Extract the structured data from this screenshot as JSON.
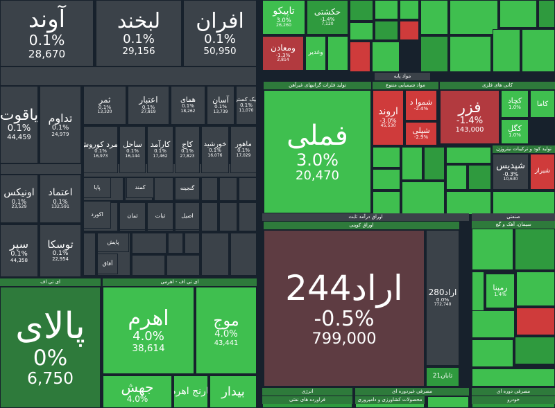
{
  "tiles": [
    {
      "name": "آوند",
      "change": "0.1%",
      "price": "28,670"
    },
    {
      "name": "لبخند",
      "change": "0.1%",
      "price": "29,156"
    },
    {
      "name": "افران",
      "change": "0.1%",
      "price": "50,950"
    },
    {
      "name": "یاقوت",
      "change": "0.1%",
      "price": "44,459"
    },
    {
      "name": "تداوم",
      "change": "0.1%",
      "price": "24,979"
    },
    {
      "name": "ثمر",
      "change": "0.1%",
      "price": "13,320"
    },
    {
      "name": "اعتبار",
      "change": "0.1%",
      "price": "27,819"
    },
    {
      "name": "همای",
      "change": "0.1%",
      "price": "18,262"
    },
    {
      "name": "آسان",
      "change": "0.1%",
      "price": "13,739"
    },
    {
      "name": "نیک کستر",
      "change": "0.1%",
      "price": "11,070"
    },
    {
      "name": "زمرد کوروش",
      "change": "0.1%",
      "price": "16,973"
    },
    {
      "name": "ساحل",
      "change": "0.1%",
      "price": "16,144"
    },
    {
      "name": "کارآمد",
      "change": "0.1%",
      "price": "17,462"
    },
    {
      "name": "کاج",
      "change": "0.1%",
      "price": "27,823"
    },
    {
      "name": "خورشید",
      "change": "0.1%",
      "price": "16,076"
    },
    {
      "name": "ماهور",
      "change": "0.1%",
      "price": "17,029"
    },
    {
      "name": "اونیکس",
      "change": "0.1%",
      "price": "23,529"
    },
    {
      "name": "اعتماد",
      "change": "0.1%",
      "price": "132,591"
    },
    {
      "name": "سپر",
      "change": "0.1%",
      "price": "44,358"
    },
    {
      "name": "توسکا",
      "change": "0.1%",
      "price": "22,954"
    },
    {
      "name": "پالای",
      "change": "0%",
      "price": "6,750"
    },
    {
      "name": "اهرم",
      "change": "4.0%",
      "price": "38,614"
    },
    {
      "name": "موج",
      "change": "4.0%",
      "price": "43,441"
    },
    {
      "name": "جهش",
      "change": "4.0%"
    },
    {
      "name": "نارنج اهرم"
    },
    {
      "name": "بیدار"
    },
    {
      "name": "تاپیکو",
      "change": "3.0%",
      "price": "26,260"
    },
    {
      "name": "حکشتی",
      "change": "-1.4%",
      "price": "7,120"
    },
    {
      "name": "ومعادن",
      "change": "-1.3%",
      "price": "2,814"
    },
    {
      "name": "وغدیر"
    },
    {
      "name": "فملی",
      "change": "3.0%",
      "price": "20,470"
    },
    {
      "name": "اروند",
      "change": "-3.0%",
      "price": "45,530"
    },
    {
      "name": "شموا د",
      "change": "-2.4%"
    },
    {
      "name": "شپلی",
      "change": "-2.9%"
    },
    {
      "name": "فزر",
      "change": "-1.4%",
      "price": "143,000"
    },
    {
      "name": "کچاد",
      "change": "1.0%"
    },
    {
      "name": "کاما"
    },
    {
      "name": "کگل",
      "change": "1.0%"
    },
    {
      "name": "شپدیس",
      "change": "-0.3%",
      "price": "10,630"
    },
    {
      "name": "شیراز"
    },
    {
      "name": "اراد244",
      "change": "-0.5%",
      "price": "799,000"
    },
    {
      "name": "اراد280",
      "change": "0.0%",
      "price": "772,740"
    },
    {
      "name": "تابان21"
    },
    {
      "name": "رمپنا",
      "change": "1.4%"
    },
    {
      "name": "پایا"
    },
    {
      "name": "اکورد"
    },
    {
      "name": "ثمان"
    },
    {
      "name": "ثبات"
    },
    {
      "name": "اصیل"
    },
    {
      "name": "کمند"
    },
    {
      "name": "گنجینه"
    },
    {
      "name": "پایش"
    },
    {
      "name": "آفاق"
    }
  ],
  "sectors": [
    "ای تی اف",
    "ای تی اف - اهرمی",
    "مواد پایه",
    "تولید فلزات گرانبهای غیرآهن",
    "مواد شیمیایی متنوع",
    "کانی های فلزی",
    "تولید کود و ترکیبات نیتروژن",
    "اوراق درآمد ثابت",
    "اوراق کوپنی",
    "صنعتی",
    "سیمان، آهک و گچ",
    "انرژی",
    "فراورده های نفتی",
    "مصرفی غیردوره ای",
    "محصولات کشاورزی و دامپروری",
    "مصرفی دوره ای",
    "خودرو"
  ]
}
